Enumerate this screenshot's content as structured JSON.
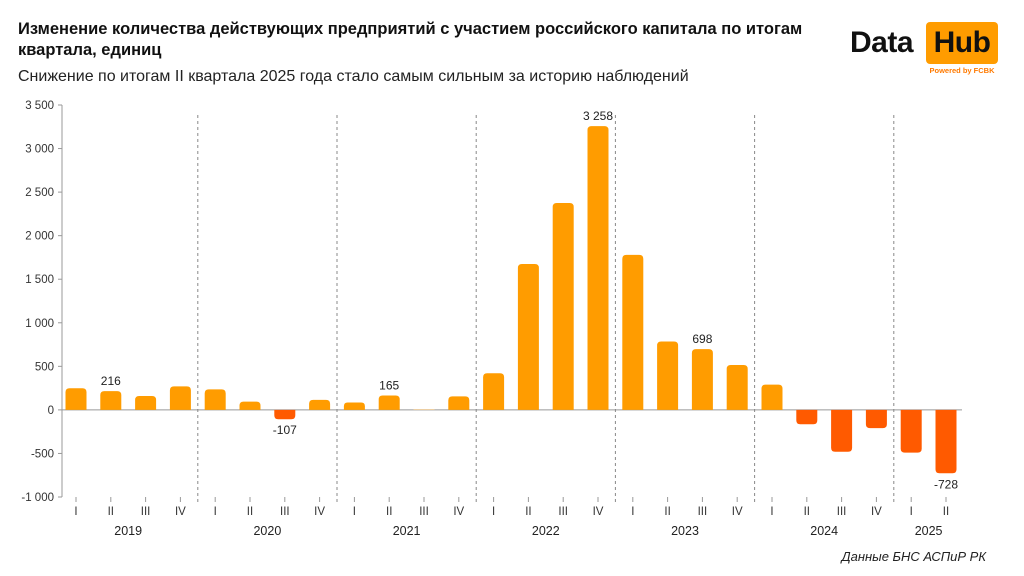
{
  "title": "Изменение количества действующих предприятий с участием российского капитала по итогам квартала, единиц",
  "subtitle": "Снижение по итогам II квартала 2025 года стало самым сильным за историю наблюдений",
  "logo": {
    "word1": "Data",
    "word2": "Hub",
    "powered": "Powered by FCBK"
  },
  "source": "Данные БНС АСПиР РК",
  "colors": {
    "positive": "#ff9c00",
    "negative": "#ff5a00",
    "zero": "#ffd08a",
    "axis": "#999999",
    "divider": "#888888"
  },
  "chart_data": {
    "type": "bar",
    "ylim": [
      -1000,
      3500
    ],
    "yticks": [
      -1000,
      -500,
      0,
      500,
      1000,
      1500,
      2000,
      2500,
      3000,
      3500
    ],
    "ytick_labels": [
      "-1 000",
      "-500",
      "0",
      "500",
      "1 000",
      "1 500",
      "2 000",
      "2 500",
      "3 000",
      "3 500"
    ],
    "groups": [
      {
        "year": "2019",
        "quarters": [
          "I",
          "II",
          "III",
          "IV"
        ],
        "values": [
          248,
          216,
          160,
          270
        ]
      },
      {
        "year": "2020",
        "quarters": [
          "I",
          "II",
          "III",
          "IV"
        ],
        "values": [
          235,
          95,
          -107,
          115
        ]
      },
      {
        "year": "2021",
        "quarters": [
          "I",
          "II",
          "III",
          "IV"
        ],
        "values": [
          85,
          165,
          8,
          155
        ]
      },
      {
        "year": "2022",
        "quarters": [
          "I",
          "II",
          "III",
          "IV"
        ],
        "values": [
          420,
          1675,
          2375,
          3258
        ]
      },
      {
        "year": "2023",
        "quarters": [
          "I",
          "II",
          "III",
          "IV"
        ],
        "values": [
          1780,
          785,
          698,
          515
        ]
      },
      {
        "year": "2024",
        "quarters": [
          "I",
          "II",
          "III",
          "IV"
        ],
        "values": [
          290,
          -165,
          -480,
          -210
        ]
      },
      {
        "year": "2025",
        "quarters": [
          "I",
          "II"
        ],
        "values": [
          -490,
          -728
        ]
      }
    ],
    "annotations": [
      {
        "group": 0,
        "index": 1,
        "label": "216"
      },
      {
        "group": 1,
        "index": 2,
        "label": "-107"
      },
      {
        "group": 2,
        "index": 1,
        "label": "165"
      },
      {
        "group": 3,
        "index": 3,
        "label": "3 258"
      },
      {
        "group": 4,
        "index": 2,
        "label": "698"
      },
      {
        "group": 6,
        "index": 1,
        "label": "-728"
      }
    ]
  }
}
